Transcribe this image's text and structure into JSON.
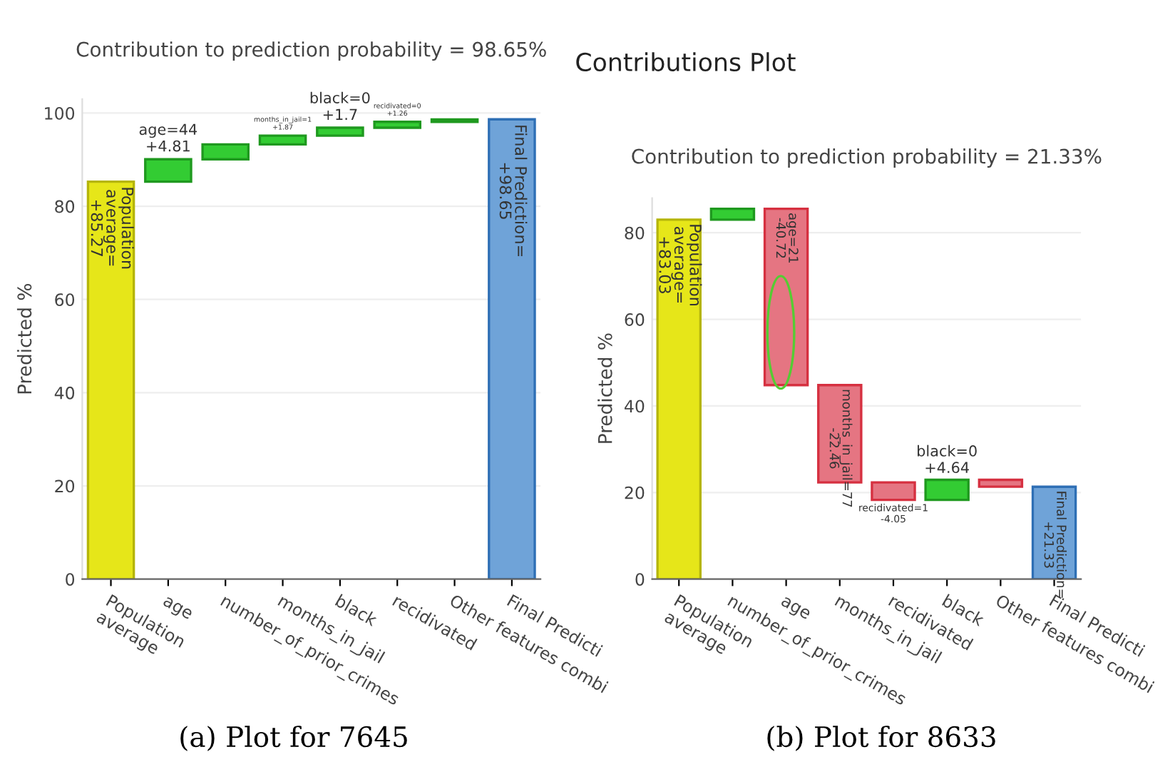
{
  "chart_data": [
    {
      "type": "bar",
      "subtitle": "Contribution to prediction probability = 98.65%",
      "ylabel": "Predicted %",
      "categories": [
        "Population\naverage",
        "age",
        "number_of_prior_crimes",
        "months_in_jail",
        "black",
        "recidivated",
        "Other features combi",
        "Final Predicti"
      ],
      "values": [
        85.27,
        4.81,
        3.2,
        1.87,
        1.7,
        1.26,
        0.5,
        98.65
      ],
      "base": [
        0,
        85.27,
        90.08,
        93.28,
        95.15,
        96.85,
        98.11,
        0
      ],
      "colors": [
        "#e6e619",
        "#33cc33",
        "#33cc33",
        "#33cc33",
        "#33cc33",
        "#33cc33",
        "#33cc33",
        "#6fa3d8"
      ],
      "value_labels": [
        "Population\naverage=\n+85.27",
        "age=44\n+4.81",
        null,
        "months_in_jail=1\n+1.87",
        "black=0\n+1.7",
        "recidivated=0\n+1.26",
        null,
        "Final Prediction=\n+98.65"
      ],
      "ylim": [
        0,
        103
      ],
      "yticks": [
        0,
        20,
        40,
        60,
        80,
        100
      ],
      "grid": "y",
      "annotations": [
        "(a) Plot for 7645"
      ]
    },
    {
      "type": "bar",
      "title": "Contributions Plot",
      "subtitle": "Contribution to prediction probability = 21.33%",
      "ylabel": "Predicted %",
      "categories": [
        "Population\naverage",
        "number_of_prior_crimes",
        "age",
        "months_in_jail",
        "recidivated",
        "black",
        "Other features combi",
        "Final Predicti"
      ],
      "values": [
        83.03,
        2.5,
        -40.72,
        -22.46,
        -4.05,
        4.64,
        -1.6,
        21.33
      ],
      "base": [
        0,
        83.03,
        85.53,
        44.81,
        22.35,
        18.3,
        22.94,
        0
      ],
      "colors": [
        "#e6e619",
        "#33cc33",
        "#e57582",
        "#e57582",
        "#e57582",
        "#33cc33",
        "#e57582",
        "#6fa3d8"
      ],
      "value_labels": [
        "Population\naverage=\n+83.03",
        null,
        "age=21\n-40.72",
        "months_in_jail=77\n-22.46",
        "recidivated=1\n-4.05",
        "black=0\n+4.64",
        null,
        "Final Prediction=\n+21.33"
      ],
      "ylim": [
        0,
        88
      ],
      "yticks": [
        0,
        20,
        40,
        60,
        80
      ],
      "grid": "y",
      "annotations": [
        "(b) Plot for 8633"
      ]
    }
  ]
}
